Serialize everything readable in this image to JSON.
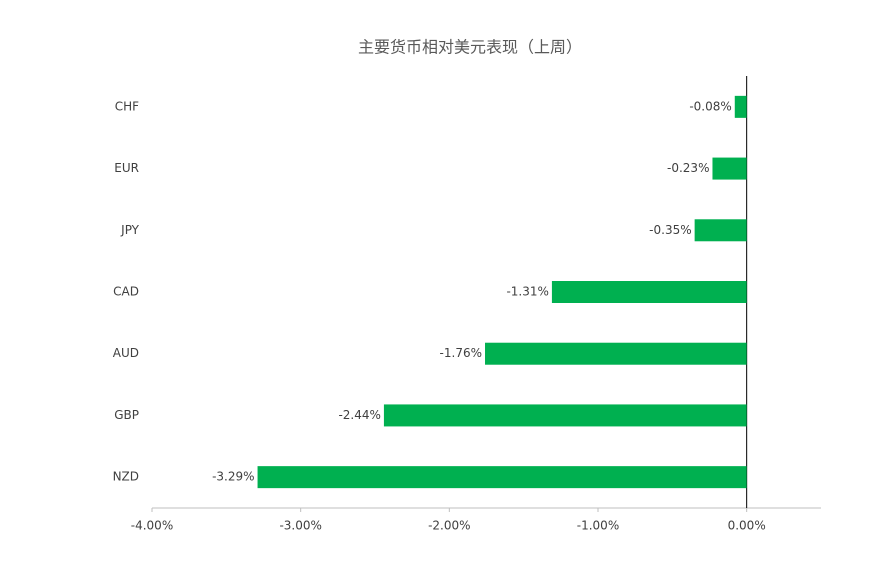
{
  "chart_data": {
    "type": "hbar",
    "title": "主要货币相对美元表现（上周）",
    "categories": [
      "CHF",
      "EUR",
      "JPY",
      "CAD",
      "AUD",
      "GBP",
      "NZD"
    ],
    "values": [
      -0.08,
      -0.23,
      -0.35,
      -1.31,
      -1.76,
      -2.44,
      -3.29
    ],
    "value_labels": [
      "-0.08%",
      "-0.23%",
      "-0.35%",
      "-1.31%",
      "-1.76%",
      "-2.44%",
      "-3.29%"
    ],
    "color": "#00b050",
    "xlim": [
      -4,
      0.5
    ],
    "xticks": [
      {
        "value": -4,
        "label": "-4.00%"
      },
      {
        "value": -3,
        "label": "-3.00%"
      },
      {
        "value": -2,
        "label": "-2.00%"
      },
      {
        "value": -1,
        "label": "-1.00%"
      },
      {
        "value": 0,
        "label": "0.00%"
      }
    ]
  }
}
